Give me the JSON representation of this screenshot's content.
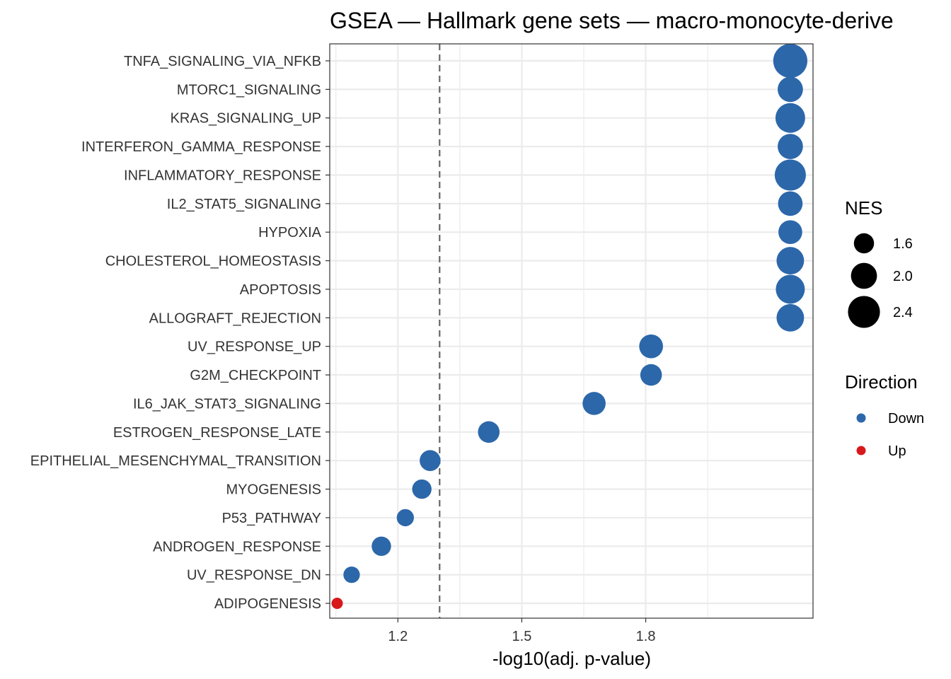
{
  "chart_data": {
    "type": "scatter",
    "title": "GSEA — Hallmark gene sets — macro-monocyte-derive",
    "xlabel": "-log10(adj. p-value)",
    "ylabel": "",
    "xlim": [
      1.035,
      2.205
    ],
    "xticks": [
      1.2,
      1.5,
      1.8
    ],
    "xtick_labels": [
      "1.2",
      "1.5",
      "1.8"
    ],
    "reference_line_x": 1.301,
    "grid": true,
    "categories": [
      "TNFA_SIGNALING_VIA_NFKB",
      "MTORC1_SIGNALING",
      "KRAS_SIGNALING_UP",
      "INTERFERON_GAMMA_RESPONSE",
      "INFLAMMATORY_RESPONSE",
      "IL2_STAT5_SIGNALING",
      "HYPOXIA",
      "CHOLESTEROL_HOMEOSTASIS",
      "APOPTOSIS",
      "ALLOGRAFT_REJECTION",
      "UV_RESPONSE_UP",
      "G2M_CHECKPOINT",
      "IL6_JAK_STAT3_SIGNALING",
      "ESTROGEN_RESPONSE_LATE",
      "EPITHELIAL_MESENCHYMAL_TRANSITION",
      "MYOGENESIS",
      "P53_PATHWAY",
      "ANDROGEN_RESPONSE",
      "UV_RESPONSE_DN",
      "ADIPOGENESIS"
    ],
    "points": [
      {
        "x": 2.15,
        "nes": 2.55,
        "direction": "Down"
      },
      {
        "x": 2.15,
        "nes": 1.95,
        "direction": "Down"
      },
      {
        "x": 2.15,
        "nes": 2.25,
        "direction": "Down"
      },
      {
        "x": 2.15,
        "nes": 1.95,
        "direction": "Down"
      },
      {
        "x": 2.15,
        "nes": 2.35,
        "direction": "Down"
      },
      {
        "x": 2.15,
        "nes": 1.9,
        "direction": "Down"
      },
      {
        "x": 2.15,
        "nes": 1.85,
        "direction": "Down"
      },
      {
        "x": 2.15,
        "nes": 2.1,
        "direction": "Down"
      },
      {
        "x": 2.15,
        "nes": 2.2,
        "direction": "Down"
      },
      {
        "x": 2.15,
        "nes": 2.1,
        "direction": "Down"
      },
      {
        "x": 1.813,
        "nes": 1.85,
        "direction": "Down"
      },
      {
        "x": 1.813,
        "nes": 1.7,
        "direction": "Down"
      },
      {
        "x": 1.675,
        "nes": 1.8,
        "direction": "Down"
      },
      {
        "x": 1.42,
        "nes": 1.7,
        "direction": "Down"
      },
      {
        "x": 1.278,
        "nes": 1.65,
        "direction": "Down"
      },
      {
        "x": 1.258,
        "nes": 1.55,
        "direction": "Down"
      },
      {
        "x": 1.218,
        "nes": 1.4,
        "direction": "Down"
      },
      {
        "x": 1.16,
        "nes": 1.55,
        "direction": "Down"
      },
      {
        "x": 1.088,
        "nes": 1.35,
        "direction": "Down"
      },
      {
        "x": 1.053,
        "nes": 1.0,
        "direction": "Up"
      }
    ],
    "legend": {
      "placement": "right",
      "size_title": "NES",
      "size_entries": [
        {
          "label": "1.6",
          "value": 1.6
        },
        {
          "label": "2.0",
          "value": 2.0
        },
        {
          "label": "2.4",
          "value": 2.4
        }
      ],
      "color_title": "Direction",
      "color_entries": [
        {
          "label": "Down",
          "color": "#2c67aa"
        },
        {
          "label": "Up",
          "color": "#d7191c"
        }
      ]
    },
    "colors": {
      "Down": "#2c67aa",
      "Up": "#d7191c",
      "reference_line": "#666666",
      "grid": "#ebebeb",
      "panel_border": "#333333"
    }
  }
}
